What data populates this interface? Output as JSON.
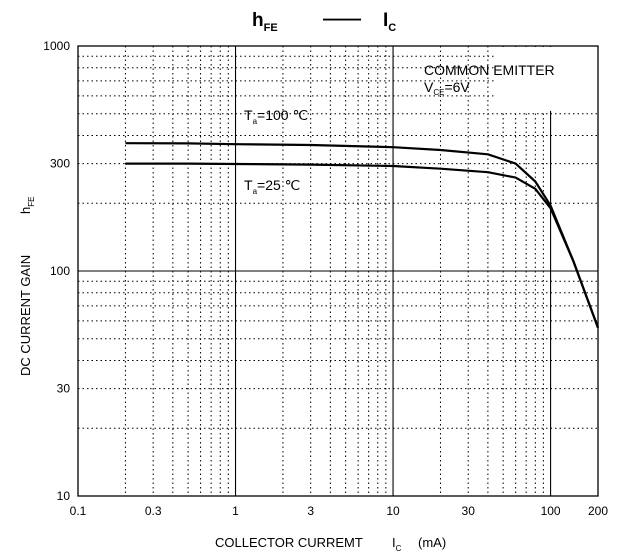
{
  "chart_data": {
    "type": "line",
    "title": {
      "main": "h",
      "main_sub": "FE",
      "dash": "——",
      "right": "I",
      "right_sub": "C"
    },
    "xlabel": {
      "text": "COLLECTOR CURREMT",
      "var": "I",
      "var_sub": "C",
      "unit": "(mA)"
    },
    "ylabel": {
      "text": "DC CURRENT GAIN",
      "var": "h",
      "var_sub": "FE"
    },
    "xscale": "log",
    "yscale": "log",
    "xlim": [
      0.1,
      200
    ],
    "ylim": [
      10,
      1000
    ],
    "grid": true,
    "x_ticks": [
      "0.1",
      "0.3",
      "1",
      "3",
      "10",
      "30",
      "100",
      "200"
    ],
    "x_tick_values": [
      0.1,
      0.3,
      1,
      3,
      10,
      30,
      100,
      200
    ],
    "y_ticks": [
      "1000",
      "300",
      "100",
      "30",
      "10"
    ],
    "y_tick_values": [
      1000,
      300,
      100,
      30,
      10
    ],
    "annotation": {
      "line1": "COMMON EMITTER",
      "line2_var": "V",
      "line2_sub": "CE",
      "line2_rest": "=6V"
    },
    "series": [
      {
        "name": "Ta=100 ℃",
        "label": {
          "var": "T",
          "sub": "a",
          "rest": "=100 ℃"
        },
        "x": [
          0.2,
          0.5,
          1,
          3,
          10,
          20,
          40,
          60,
          80,
          100,
          140,
          200
        ],
        "y": [
          370,
          369,
          366,
          363,
          355,
          345,
          330,
          300,
          250,
          195,
          110,
          56
        ]
      },
      {
        "name": "Ta=25 ℃",
        "label": {
          "var": "T",
          "sub": "a",
          "rest": "=25 ℃"
        },
        "x": [
          0.2,
          0.5,
          1,
          3,
          10,
          20,
          40,
          60,
          80,
          100,
          140,
          200
        ],
        "y": [
          300,
          300,
          299,
          297,
          293,
          285,
          275,
          260,
          232,
          190,
          110,
          56
        ]
      }
    ]
  }
}
